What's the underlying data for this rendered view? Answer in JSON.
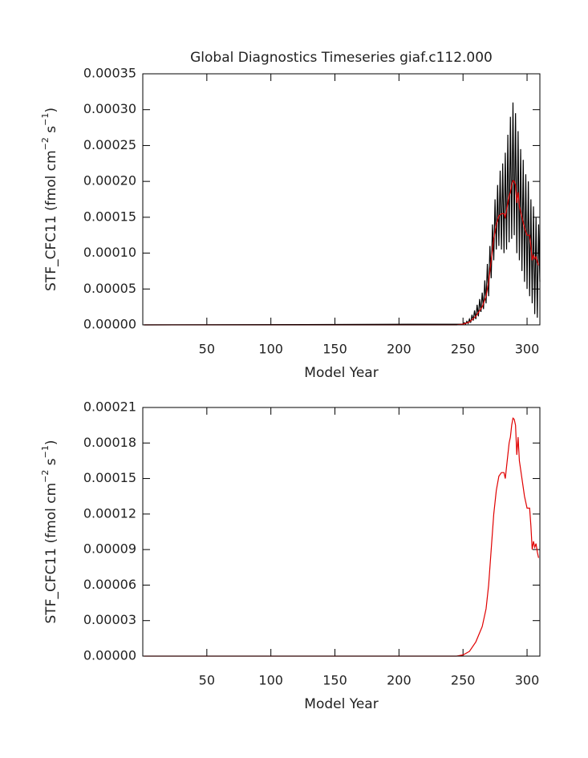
{
  "chart_data": [
    {
      "type": "line",
      "title": "Global Diagnostics Timeseries giaf.c112.000",
      "x_label": "Model Year",
      "y_label": [
        "STF_CFC11 (fmol cm",
        "−2",
        " s",
        "−1",
        ")"
      ],
      "xlim": [
        0,
        310
      ],
      "xticks": [
        50,
        100,
        150,
        200,
        250,
        300
      ],
      "ylim": [
        0,
        0.00035
      ],
      "yticks": [
        {
          "value": 0,
          "label": "0.00000"
        },
        {
          "value": 5e-05,
          "label": "0.00005"
        },
        {
          "value": 0.0001,
          "label": "0.00010"
        },
        {
          "value": 0.00015,
          "label": "0.00015"
        },
        {
          "value": 0.0002,
          "label": "0.00020"
        },
        {
          "value": 0.00025,
          "label": "0.00025"
        },
        {
          "value": 0.0003,
          "label": "0.00030"
        },
        {
          "value": 0.00035,
          "label": "0.00035"
        }
      ],
      "series": [
        {
          "color": "#000000",
          "x": [
            1,
            250,
            251,
            252,
            253,
            254,
            255,
            256,
            257,
            258,
            259,
            260,
            261,
            262,
            263,
            264,
            265,
            266,
            267,
            268,
            269,
            270,
            271,
            272,
            273,
            274,
            275,
            276,
            277,
            278,
            279,
            280,
            281,
            282,
            283,
            284,
            285,
            286,
            287,
            288,
            289,
            290,
            291,
            292,
            293,
            294,
            295,
            296,
            297,
            298,
            299,
            300,
            301,
            302,
            303,
            304,
            305,
            306,
            307,
            308,
            309,
            310
          ],
          "values": [
            0,
            1e-06,
            3e-06,
            1e-06,
            5e-06,
            2e-06,
            8e-06,
            3e-06,
            1.4e-05,
            6e-06,
            2e-05,
            8e-06,
            2.8e-05,
            1.2e-05,
            3.6e-05,
            1.8e-05,
            4.5e-05,
            2.2e-05,
            6.2e-05,
            3e-05,
            8.5e-05,
            4e-05,
            0.00011,
            6.5e-05,
            0.00014,
            9e-05,
            0.000175,
            0.000105,
            0.000195,
            0.00011,
            0.000215,
            0.000105,
            0.000225,
            0.0001,
            0.00024,
            0.000105,
            0.000265,
            0.000115,
            0.00029,
            0.00012,
            0.00031,
            0.000125,
            0.000295,
            0.0001,
            0.00027,
            9e-05,
            0.000245,
            7.5e-05,
            0.00023,
            6e-05,
            0.00021,
            5e-05,
            0.0002,
            4e-05,
            0.000175,
            3e-05,
            0.000165,
            1.5e-05,
            0.00015,
            1e-05,
            0.00014,
            6e-05
          ]
        },
        {
          "color": "#e00000",
          "x": [
            1,
            245,
            250,
            255,
            260,
            265,
            268,
            270,
            272,
            274,
            276,
            278,
            280,
            282,
            283,
            284,
            285,
            286,
            287,
            288,
            289,
            290,
            291,
            292,
            293,
            294,
            296,
            298,
            300,
            302,
            303,
            304,
            305,
            306,
            307,
            308,
            309
          ],
          "values": [
            0,
            0,
            1e-06,
            4e-06,
            1.2e-05,
            2.5e-05,
            4e-05,
            6e-05,
            9e-05,
            0.00012,
            0.00014,
            0.000152,
            0.000155,
            0.000155,
            0.00015,
            0.00016,
            0.00017,
            0.00018,
            0.000185,
            0.000195,
            0.000201,
            0.0002,
            0.000195,
            0.00017,
            0.000185,
            0.000165,
            0.00015,
            0.000135,
            0.000125,
            0.000125,
            0.00011,
            9e-05,
            9.7e-05,
            9.2e-05,
            9.5e-05,
            8.8e-05,
            8.3e-05
          ]
        }
      ]
    },
    {
      "type": "line",
      "x_label": "Model Year",
      "y_label": [
        "STF_CFC11 (fmol cm",
        "−2",
        " s",
        "−1",
        ")"
      ],
      "xlim": [
        0,
        310
      ],
      "xticks": [
        50,
        100,
        150,
        200,
        250,
        300
      ],
      "ylim": [
        0,
        0.00021
      ],
      "yticks": [
        {
          "value": 0,
          "label": "0.00000"
        },
        {
          "value": 3e-05,
          "label": "0.00003"
        },
        {
          "value": 6e-05,
          "label": "0.00006"
        },
        {
          "value": 9e-05,
          "label": "0.00009"
        },
        {
          "value": 0.00012,
          "label": "0.00012"
        },
        {
          "value": 0.00015,
          "label": "0.00015"
        },
        {
          "value": 0.00018,
          "label": "0.00018"
        },
        {
          "value": 0.00021,
          "label": "0.00021"
        }
      ],
      "series": [
        {
          "color": "#e00000",
          "x": [
            1,
            245,
            250,
            255,
            260,
            265,
            268,
            270,
            272,
            274,
            276,
            278,
            280,
            282,
            283,
            284,
            285,
            286,
            287,
            288,
            289,
            290,
            291,
            292,
            293,
            294,
            296,
            298,
            300,
            302,
            303,
            304,
            305,
            306,
            307,
            308,
            309
          ],
          "values": [
            0,
            0,
            1e-06,
            4e-06,
            1.2e-05,
            2.5e-05,
            4e-05,
            6e-05,
            9e-05,
            0.00012,
            0.00014,
            0.000152,
            0.000155,
            0.000155,
            0.00015,
            0.00016,
            0.00017,
            0.00018,
            0.000185,
            0.000195,
            0.000201,
            0.0002,
            0.000195,
            0.00017,
            0.000185,
            0.000165,
            0.00015,
            0.000135,
            0.000125,
            0.000125,
            0.00011,
            9e-05,
            9.7e-05,
            9.2e-05,
            9.5e-05,
            8.8e-05,
            8.3e-05
          ]
        }
      ]
    }
  ]
}
